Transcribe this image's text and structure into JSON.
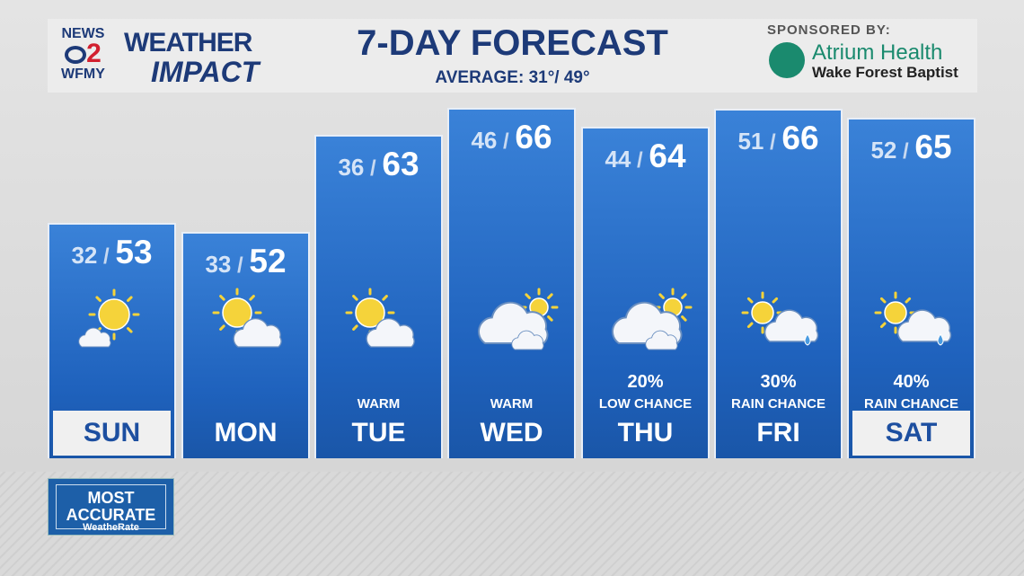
{
  "header": {
    "station_logo_top": "NEWS",
    "station_logo_num": "2",
    "station_logo_bottom": "WFMY",
    "brand_line1": "WEATHER",
    "brand_line2": "IMPACT",
    "title": "7-DAY FORECAST",
    "average": "AVERAGE: 31°/ 49°",
    "sponsor_label": "SPONSORED BY:",
    "sponsor_name": "Atrium Health",
    "sponsor_sub": "Wake Forest Baptist"
  },
  "days": [
    {
      "day": "SUN",
      "low": "32",
      "high": "53",
      "icon": "sun-small-cloud",
      "pct": "",
      "label": "",
      "highlight": true
    },
    {
      "day": "MON",
      "low": "33",
      "high": "52",
      "icon": "sun-cloud",
      "pct": "",
      "label": "",
      "highlight": false
    },
    {
      "day": "TUE",
      "low": "36",
      "high": "63",
      "icon": "sun-cloud",
      "pct": "",
      "label": "WARM",
      "highlight": false
    },
    {
      "day": "WED",
      "low": "46",
      "high": "66",
      "icon": "cloud-sun",
      "pct": "",
      "label": "WARM",
      "highlight": false
    },
    {
      "day": "THU",
      "low": "44",
      "high": "64",
      "icon": "cloud-sun",
      "pct": "20%",
      "label": "LOW CHANCE",
      "highlight": false
    },
    {
      "day": "FRI",
      "low": "51",
      "high": "66",
      "icon": "sun-cloud-rain",
      "pct": "30%",
      "label": "RAIN CHANCE",
      "highlight": false
    },
    {
      "day": "SAT",
      "low": "52",
      "high": "65",
      "icon": "sun-cloud-rain",
      "pct": "40%",
      "label": "RAIN CHANCE",
      "highlight": true
    }
  ],
  "badge": {
    "line1": "MOST",
    "line2": "ACCURATE",
    "line3": "WeatheRate"
  },
  "colors": {
    "brand_navy": "#1d3a78",
    "column_blue": "#2a6fc9",
    "sponsor_green": "#1a8a6e",
    "logo_red": "#d2202f"
  }
}
